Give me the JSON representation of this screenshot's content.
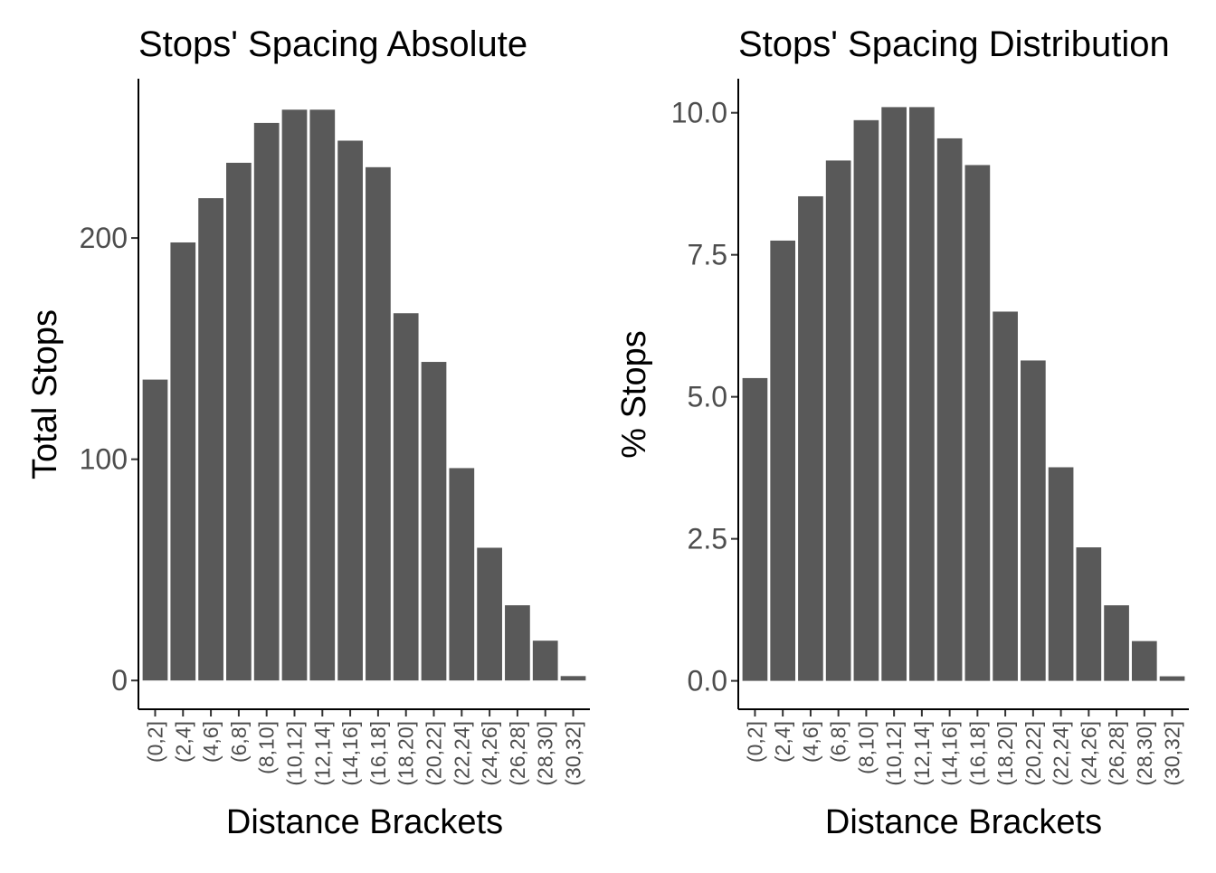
{
  "colors": {
    "bar": "#595959",
    "axis": "#000000",
    "tick_text": "#4d4d4d",
    "background": "#ffffff"
  },
  "chart_data": [
    {
      "type": "bar",
      "title": "Stops' Spacing Absolute",
      "xlabel": "Distance Brackets",
      "ylabel": "Total Stops",
      "categories": [
        "(0,2]",
        "(2,4]",
        "(4,6]",
        "(6,8]",
        "(8,10]",
        "(10,12]",
        "(12,14]",
        "(14,16]",
        "(16,18]",
        "(18,20]",
        "(20,22]",
        "(22,24]",
        "(24,26]",
        "(26,28]",
        "(28,30]",
        "(30,32]"
      ],
      "values": [
        136,
        198,
        218,
        234,
        252,
        258,
        258,
        244,
        232,
        166,
        144,
        96,
        60,
        34,
        18,
        2
      ],
      "ylim": [
        -13,
        272
      ],
      "yticks": [
        0,
        100,
        200
      ],
      "ytick_labels": [
        "0",
        "100",
        "200"
      ],
      "grid": false
    },
    {
      "type": "bar",
      "title": "Stops' Spacing Distribution",
      "xlabel": "Distance Brackets",
      "ylabel": "% Stops",
      "categories": [
        "(0,2]",
        "(2,4]",
        "(4,6]",
        "(6,8]",
        "(8,10]",
        "(10,12]",
        "(12,14]",
        "(14,16]",
        "(16,18]",
        "(18,20]",
        "(20,22]",
        "(22,24]",
        "(24,26]",
        "(26,28]",
        "(28,30]",
        "(30,32]"
      ],
      "values": [
        5.33,
        7.75,
        8.53,
        9.16,
        9.87,
        10.1,
        10.1,
        9.55,
        9.08,
        6.5,
        5.64,
        3.76,
        2.35,
        1.33,
        0.7,
        0.08
      ],
      "ylim": [
        -0.5,
        10.6
      ],
      "yticks": [
        0.0,
        2.5,
        5.0,
        7.5,
        10.0
      ],
      "ytick_labels": [
        "0.0",
        "2.5",
        "5.0",
        "7.5",
        "10.0"
      ],
      "grid": false
    }
  ]
}
